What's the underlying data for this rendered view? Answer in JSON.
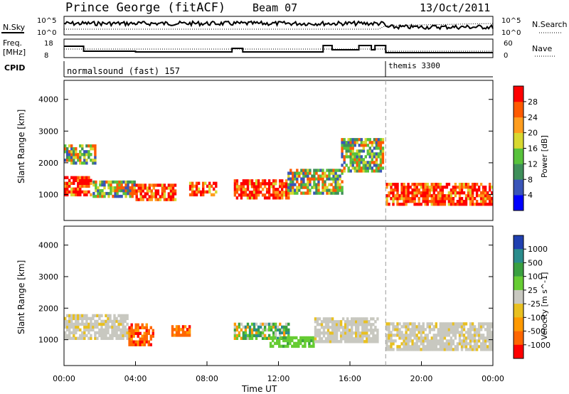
{
  "header": {
    "station": "Prince George (fitACF)",
    "beam": "Beam 07",
    "date": "13/Oct/2011"
  },
  "top_panels": {
    "nsky": {
      "label": "N.Sky",
      "ticks": [
        "10^5",
        "10^0"
      ],
      "right_label": "N.Search",
      "right_ticks": [
        "10^5",
        "10^0"
      ]
    },
    "freq": {
      "label_line1": "Freq.",
      "label_line2": "[MHz]",
      "ticks": [
        "18",
        "8"
      ],
      "right_label": "Nave",
      "right_ticks": [
        "60",
        "0"
      ]
    },
    "cpid": {
      "label": "CPID",
      "modes": [
        {
          "name": "normalsound (fast) 157",
          "start_hour": 0
        },
        {
          "name": "themis 3300",
          "start_hour": 18
        }
      ]
    }
  },
  "chart_data": [
    {
      "type": "heatmap",
      "title": "",
      "ylabel": "Slant Range [km]",
      "xlabel": "",
      "x_range_hours": [
        0,
        24
      ],
      "ylim": [
        180,
        4600
      ],
      "y_ticks": [
        1000,
        2000,
        3000,
        4000
      ],
      "colorbar": {
        "label": "Power [dB]",
        "ticks": [
          "4",
          "8",
          "12",
          "16",
          "20",
          "24",
          "28"
        ],
        "colors": [
          "#0000ff",
          "#3a55b8",
          "#3f8f5a",
          "#58c23c",
          "#d8d830",
          "#ff9d1e",
          "#ff5a00",
          "#ff0000"
        ]
      },
      "backscatter_bands": [
        {
          "t": [
            0.0,
            1.5
          ],
          "range": [
            950,
            1500
          ],
          "level": "high"
        },
        {
          "t": [
            0.0,
            1.7
          ],
          "range": [
            1950,
            2500
          ],
          "level": "mid"
        },
        {
          "t": [
            1.6,
            4.0
          ],
          "range": [
            900,
            1400
          ],
          "level": "mid"
        },
        {
          "t": [
            4.0,
            6.2
          ],
          "range": [
            800,
            1300
          ],
          "level": "high"
        },
        {
          "t": [
            7.0,
            8.5
          ],
          "range": [
            950,
            1350
          ],
          "level": "high"
        },
        {
          "t": [
            9.5,
            12.5
          ],
          "range": [
            850,
            1400
          ],
          "level": "high"
        },
        {
          "t": [
            12.5,
            15.5
          ],
          "range": [
            1000,
            1800
          ],
          "level": "mid"
        },
        {
          "t": [
            15.5,
            17.9
          ],
          "range": [
            1700,
            2700
          ],
          "level": "mid"
        },
        {
          "t": [
            18.0,
            24.0
          ],
          "range": [
            650,
            1350
          ],
          "level": "high"
        }
      ]
    },
    {
      "type": "heatmap",
      "title": "",
      "ylabel": "Slant Range [km]",
      "xlabel": "Time UT",
      "x_range_hours": [
        0,
        24
      ],
      "ylim": [
        180,
        4600
      ],
      "y_ticks": [
        1000,
        2000,
        3000,
        4000
      ],
      "x_tick_labels": [
        "00:00",
        "04:00",
        "08:00",
        "12:00",
        "16:00",
        "20:00",
        "00:00"
      ],
      "colorbar": {
        "label": "Velocity [m s^-1]",
        "ticks": [
          "1000",
          "500",
          "100",
          "25",
          "-25",
          "-100",
          "-500",
          "-1000"
        ],
        "colors": [
          "#2040b0",
          "#2a8c8c",
          "#3aa040",
          "#66cc33",
          "#c8c8c0",
          "#e8c020",
          "#ff9900",
          "#ff6600",
          "#ff0000"
        ]
      },
      "backscatter_bands": [
        {
          "t": [
            0.0,
            3.5
          ],
          "range": [
            1000,
            1800
          ],
          "level": "ground"
        },
        {
          "t": [
            3.6,
            5.0
          ],
          "range": [
            800,
            1500
          ],
          "level": "negative"
        },
        {
          "t": [
            6.0,
            7.0
          ],
          "range": [
            1100,
            1450
          ],
          "level": "negative"
        },
        {
          "t": [
            9.5,
            12.5
          ],
          "range": [
            1000,
            1500
          ],
          "level": "mixed"
        },
        {
          "t": [
            11.5,
            14.0
          ],
          "range": [
            750,
            1050
          ],
          "level": "positive"
        },
        {
          "t": [
            14.0,
            17.5
          ],
          "range": [
            900,
            1700
          ],
          "level": "ground"
        },
        {
          "t": [
            18.0,
            24.0
          ],
          "range": [
            650,
            1500
          ],
          "level": "ground"
        }
      ]
    }
  ]
}
